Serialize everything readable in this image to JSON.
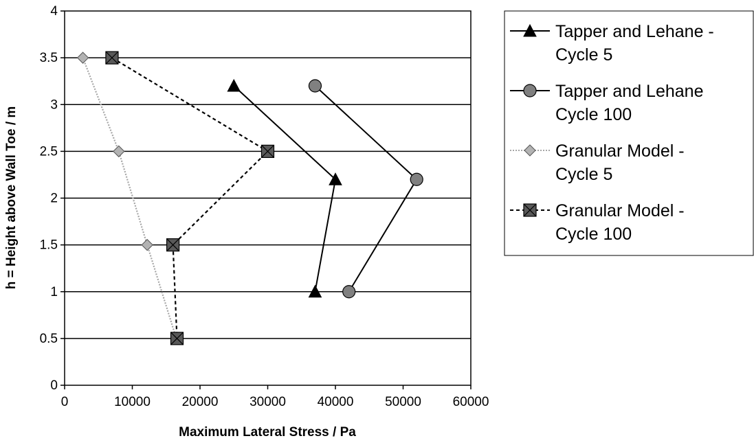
{
  "chart_data": {
    "type": "line",
    "title": "",
    "xlabel": "Maximum Lateral Stress / Pa",
    "ylabel": "h = Height above Wall Toe / m",
    "xlim": [
      0,
      60000
    ],
    "ylim": [
      0,
      4
    ],
    "x_ticks": [
      0,
      10000,
      20000,
      30000,
      40000,
      50000,
      60000
    ],
    "y_ticks": [
      0,
      0.5,
      1,
      1.5,
      2,
      2.5,
      3,
      3.5,
      4
    ],
    "x_tick_labels": [
      "0",
      "10000",
      "20000",
      "30000",
      "40000",
      "50000",
      "60000"
    ],
    "y_tick_labels": [
      "0",
      "0.5",
      "1",
      "1.5",
      "2",
      "2.5",
      "3",
      "3.5",
      "4"
    ],
    "grid": "horizontal",
    "legend_position": "right",
    "series": [
      {
        "name": "Tapper and Lehane - Cycle 5",
        "legend_lines": [
          "Tapper and Lehane -",
          "Cycle 5"
        ],
        "marker": "triangle",
        "line_style": "solid",
        "line_color": "#000000",
        "marker_color": "#000000",
        "points": [
          [
            25000,
            3.2
          ],
          [
            40000,
            2.2
          ],
          [
            37000,
            1.0
          ]
        ]
      },
      {
        "name": "Tapper and Lehane Cycle 100",
        "legend_lines": [
          "Tapper and Lehane",
          "Cycle 100"
        ],
        "marker": "circle",
        "line_style": "solid",
        "line_color": "#000000",
        "marker_color": "#808080",
        "points": [
          [
            37000,
            3.2
          ],
          [
            52000,
            2.2
          ],
          [
            42000,
            1.0
          ]
        ]
      },
      {
        "name": "Granular Model - Cycle 5",
        "legend_lines": [
          "Granular Model -",
          "Cycle 5"
        ],
        "marker": "diamond",
        "line_style": "dotted",
        "line_color": "#a6a6a6",
        "marker_color": "#b3b3b3",
        "points": [
          [
            2700,
            3.5
          ],
          [
            8000,
            2.5
          ],
          [
            12200,
            1.5
          ],
          [
            16500,
            0.5
          ]
        ]
      },
      {
        "name": "Granular Model - Cycle 100",
        "legend_lines": [
          "Granular Model -",
          "Cycle 100"
        ],
        "marker": "square-x",
        "line_style": "dashed",
        "line_color": "#000000",
        "marker_color": "#595959",
        "points": [
          [
            7000,
            3.5
          ],
          [
            30000,
            2.5
          ],
          [
            16000,
            1.5
          ],
          [
            16600,
            0.5
          ]
        ]
      }
    ]
  }
}
